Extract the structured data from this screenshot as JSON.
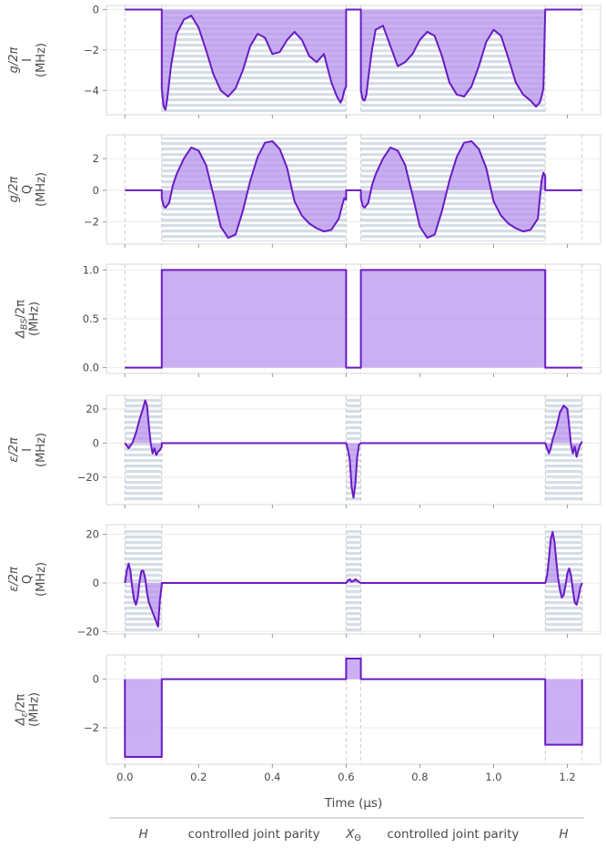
{
  "colors": {
    "line": "#6a1bc4",
    "fill": "#d3b5f5",
    "fill_dark": "#b894ee",
    "hatch": "#d5dde6",
    "frame": "#d9d9d9",
    "text": "#4a4a4a",
    "vline": "#c8c8c8"
  },
  "chart_data": [
    {
      "type": "area",
      "ylabel_lines": [
        "g/2π",
        "I",
        "(MHz)"
      ],
      "ylim": [
        -5.2,
        0.2
      ],
      "yticks": [
        0,
        -2,
        -4
      ],
      "ytick_labels": [
        "0",
        "−2",
        "−4"
      ],
      "hatched": [
        [
          0.1,
          0.6
        ],
        [
          0.64,
          1.14
        ]
      ],
      "series": [
        {
          "x": [
            0,
            0.1,
            0.1,
            0.105,
            0.11,
            0.115,
            0.12,
            0.125,
            0.14,
            0.16,
            0.18,
            0.2,
            0.22,
            0.24,
            0.26,
            0.28,
            0.3,
            0.32,
            0.34,
            0.36,
            0.38,
            0.4,
            0.42,
            0.44,
            0.46,
            0.48,
            0.5,
            0.52,
            0.54,
            0.56,
            0.575,
            0.585,
            0.59,
            0.595,
            0.6,
            0.6,
            0.64,
            0.64,
            0.645,
            0.65,
            0.655,
            0.66,
            0.67,
            0.68,
            0.7,
            0.72,
            0.74,
            0.76,
            0.78,
            0.8,
            0.82,
            0.84,
            0.86,
            0.88,
            0.9,
            0.92,
            0.94,
            0.96,
            0.98,
            1.0,
            1.02,
            1.04,
            1.06,
            1.08,
            1.1,
            1.115,
            1.125,
            1.13,
            1.135,
            1.14,
            1.14,
            1.24
          ],
          "values": [
            0,
            0,
            -3.9,
            -4.8,
            -4.95,
            -4.4,
            -3.6,
            -2.8,
            -1.2,
            -0.5,
            -0.3,
            -0.9,
            -2.0,
            -3.2,
            -4.0,
            -4.3,
            -3.9,
            -3.0,
            -1.8,
            -1.2,
            -1.4,
            -2.2,
            -2.1,
            -1.5,
            -1.1,
            -1.5,
            -2.3,
            -2.6,
            -2.2,
            -3.6,
            -4.3,
            -4.6,
            -4.4,
            -4.0,
            -3.8,
            0,
            0,
            -4.0,
            -4.45,
            -4.5,
            -4.2,
            -3.4,
            -2.0,
            -1.0,
            -0.8,
            -1.8,
            -2.8,
            -2.6,
            -2.2,
            -1.5,
            -1.1,
            -1.3,
            -2.3,
            -3.6,
            -4.2,
            -4.3,
            -3.8,
            -2.8,
            -1.6,
            -1.0,
            -1.3,
            -2.4,
            -3.6,
            -4.2,
            -4.5,
            -4.8,
            -4.6,
            -4.3,
            -3.9,
            0,
            0,
            0
          ]
        }
      ]
    },
    {
      "type": "area",
      "ylabel_lines": [
        "g/2π",
        "Q",
        "(MHz)"
      ],
      "ylim": [
        -3.4,
        3.5
      ],
      "yticks": [
        2,
        0,
        -2
      ],
      "ytick_labels": [
        "2",
        "0",
        "−2"
      ],
      "hatched": [
        [
          0.1,
          0.6
        ],
        [
          0.64,
          1.14
        ]
      ],
      "series": [
        {
          "x": [
            0,
            0.1,
            0.1,
            0.105,
            0.11,
            0.12,
            0.13,
            0.14,
            0.16,
            0.18,
            0.2,
            0.22,
            0.24,
            0.26,
            0.28,
            0.3,
            0.32,
            0.34,
            0.36,
            0.38,
            0.4,
            0.42,
            0.44,
            0.46,
            0.48,
            0.5,
            0.52,
            0.54,
            0.56,
            0.58,
            0.59,
            0.595,
            0.6,
            0.6,
            0.64,
            0.64,
            0.645,
            0.65,
            0.66,
            0.67,
            0.68,
            0.7,
            0.72,
            0.74,
            0.76,
            0.78,
            0.8,
            0.82,
            0.84,
            0.86,
            0.88,
            0.9,
            0.92,
            0.94,
            0.96,
            0.98,
            1.0,
            1.02,
            1.04,
            1.06,
            1.08,
            1.1,
            1.12,
            1.13,
            1.135,
            1.14,
            1.14,
            1.24
          ],
          "values": [
            0,
            0,
            -0.5,
            -1.0,
            -1.1,
            -0.8,
            0.3,
            1.0,
            2.0,
            2.7,
            2.5,
            1.6,
            -0.3,
            -2.3,
            -3.0,
            -2.8,
            -1.3,
            0.6,
            2.1,
            3.0,
            3.1,
            2.6,
            1.4,
            -0.7,
            -1.6,
            -2.1,
            -2.4,
            -2.6,
            -2.5,
            -1.8,
            -0.9,
            -0.5,
            -0.6,
            0,
            0,
            -0.5,
            -1.0,
            -1.1,
            -0.8,
            0.3,
            1.0,
            2.0,
            2.7,
            2.5,
            1.6,
            -0.3,
            -2.3,
            -3.0,
            -2.8,
            -1.3,
            0.6,
            2.1,
            3.0,
            3.1,
            2.6,
            1.4,
            -0.7,
            -1.6,
            -2.1,
            -2.4,
            -2.6,
            -2.5,
            -1.8,
            0.6,
            1.1,
            0.9,
            0,
            0
          ]
        }
      ]
    },
    {
      "type": "area",
      "ylabel_lines": [
        "Δ_BS/2π",
        "(MHz)"
      ],
      "ylim": [
        -0.06,
        1.06
      ],
      "yticks": [
        1.0,
        0.5,
        0.0
      ],
      "ytick_labels": [
        "1.0",
        "0.5",
        "0.0"
      ],
      "hatched": [],
      "series": [
        {
          "x": [
            0,
            0.1,
            0.1,
            0.6,
            0.6,
            0.64,
            0.64,
            1.14,
            1.14,
            1.24
          ],
          "values": [
            0,
            0,
            1,
            1,
            0,
            0,
            1,
            1,
            0,
            0
          ]
        }
      ]
    },
    {
      "type": "area",
      "ylabel_lines": [
        "ε/2π",
        "I",
        "(MHz)"
      ],
      "ylim": [
        -36,
        28
      ],
      "yticks": [
        20,
        0,
        -20
      ],
      "ytick_labels": [
        "20",
        "0",
        "−20"
      ],
      "hatched": [
        [
          0,
          0.1
        ],
        [
          0.6,
          0.64
        ],
        [
          1.14,
          1.24
        ]
      ],
      "series": [
        {
          "x": [
            0,
            0.01,
            0.02,
            0.03,
            0.04,
            0.05,
            0.055,
            0.06,
            0.065,
            0.07,
            0.075,
            0.08,
            0.085,
            0.09,
            0.095,
            0.1,
            0.1,
            0.6,
            0.605,
            0.61,
            0.615,
            0.62,
            0.625,
            0.63,
            0.635,
            0.64,
            0.64,
            1.14,
            1.145,
            1.15,
            1.155,
            1.16,
            1.17,
            1.18,
            1.19,
            1.2,
            1.205,
            1.21,
            1.215,
            1.22,
            1.225,
            1.23,
            1.235,
            1.24
          ],
          "values": [
            0,
            -3,
            0,
            6,
            14,
            21,
            25,
            22,
            10,
            0,
            -6,
            -3,
            -7,
            -5,
            -4,
            -2,
            0,
            0,
            -4,
            -10,
            -26,
            -32,
            -24,
            -8,
            -1,
            0,
            0,
            0,
            -3,
            -6,
            -3,
            2,
            9,
            18,
            22,
            20,
            10,
            -1,
            -6,
            -2,
            -8,
            -4,
            -1,
            1
          ]
        }
      ]
    },
    {
      "type": "area",
      "ylabel_lines": [
        "ε/2π",
        "Q",
        "(MHz)"
      ],
      "ylim": [
        -21,
        24
      ],
      "yticks": [
        20,
        0,
        -20
      ],
      "ytick_labels": [
        "20",
        "0",
        "−20"
      ],
      "hatched": [
        [
          0,
          0.1
        ],
        [
          0.6,
          0.64
        ],
        [
          1.14,
          1.24
        ]
      ],
      "series": [
        {
          "x": [
            0,
            0.005,
            0.01,
            0.015,
            0.02,
            0.025,
            0.03,
            0.035,
            0.04,
            0.045,
            0.05,
            0.055,
            0.06,
            0.065,
            0.07,
            0.075,
            0.08,
            0.085,
            0.09,
            0.095,
            0.1,
            0.1,
            0.6,
            0.605,
            0.61,
            0.615,
            0.62,
            0.625,
            0.63,
            0.635,
            0.64,
            0.64,
            1.14,
            1.145,
            1.15,
            1.155,
            1.16,
            1.165,
            1.17,
            1.175,
            1.18,
            1.185,
            1.19,
            1.195,
            1.2,
            1.205,
            1.21,
            1.215,
            1.22,
            1.225,
            1.23,
            1.235,
            1.24
          ],
          "values": [
            0,
            5,
            8,
            5,
            -2,
            -7,
            -9,
            -6,
            1,
            5,
            5,
            2,
            -4,
            -8,
            -10,
            -12,
            -14,
            -16,
            -18,
            -7,
            -1,
            0,
            0,
            1,
            1.5,
            0.5,
            0.8,
            1.5,
            1,
            0.3,
            0,
            0,
            0,
            3,
            10,
            18,
            21,
            17,
            9,
            2,
            -3,
            -6,
            -5,
            -1,
            4,
            6,
            3,
            -3,
            -8,
            -9,
            -6,
            -2,
            0
          ]
        }
      ]
    },
    {
      "type": "area",
      "ylabel_lines": [
        "Δ_ε/2π",
        "(MHz)"
      ],
      "ylim": [
        -3.5,
        1.0
      ],
      "yticks": [
        0,
        -2
      ],
      "ytick_labels": [
        "0",
        "−2"
      ],
      "hatched": [],
      "series": [
        {
          "x": [
            0,
            0,
            0.1,
            0.1,
            0.6,
            0.6,
            0.64,
            0.64,
            1.14,
            1.14,
            1.24,
            1.24
          ],
          "values": [
            0,
            -3.2,
            -3.2,
            0,
            0,
            0.85,
            0.85,
            0,
            0,
            -2.7,
            -2.7,
            0
          ]
        }
      ]
    }
  ],
  "x_axis": {
    "xlim": [
      -0.05,
      1.29
    ],
    "xticks": [
      0.0,
      0.2,
      0.4,
      0.6,
      0.8,
      1.0,
      1.2
    ],
    "xtick_labels": [
      "0.0",
      "0.2",
      "0.4",
      "0.6",
      "0.8",
      "1.0",
      "1.2"
    ],
    "xlabel": "Time (μs)",
    "vlines": [
      0,
      0.1,
      0.6,
      0.64,
      1.14,
      1.24
    ]
  },
  "segments": [
    {
      "label": "H",
      "math": true,
      "x": 0.05
    },
    {
      "label": "controlled joint parity",
      "math": false,
      "x": 0.35
    },
    {
      "label": "X_Θ",
      "math": true,
      "x": 0.62
    },
    {
      "label": "controlled joint parity",
      "math": false,
      "x": 0.89
    },
    {
      "label": "H",
      "math": true,
      "x": 1.19
    }
  ]
}
